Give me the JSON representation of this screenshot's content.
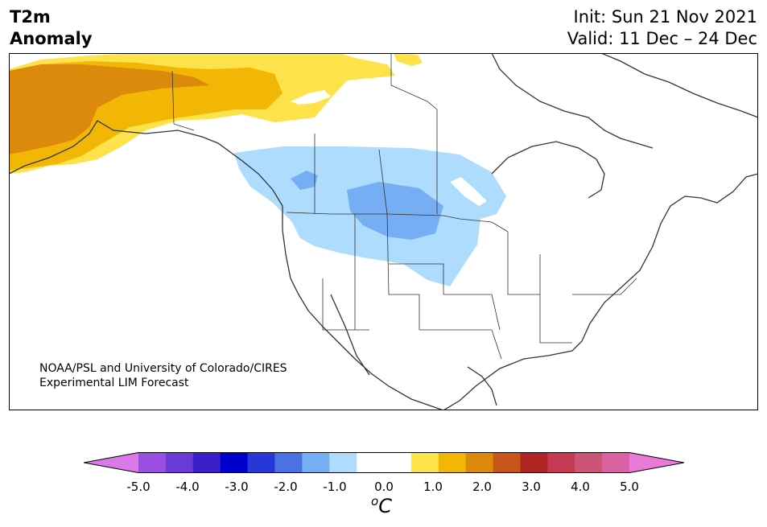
{
  "header": {
    "title_line1": "T2m",
    "title_line2": "Anomaly",
    "init_label": "Init: Sun 21 Nov 2021",
    "valid_label": "Valid: 11 Dec – 24 Dec"
  },
  "credit": {
    "line1": "NOAA/PSL and University of Colorado/CIRES",
    "line2": "Experimental LIM Forecast"
  },
  "colorbar": {
    "ticks": [
      "-5.0",
      "-4.0",
      "-3.0",
      "-2.0",
      "-1.0",
      "0.0",
      "1.0",
      "2.0",
      "3.0",
      "4.0",
      "5.0"
    ],
    "unit_base": "C",
    "unit_sup": "o",
    "colors": [
      "#d97ae8",
      "#9b4fe0",
      "#6a3ad8",
      "#3a20c8",
      "#0000cc",
      "#2638d8",
      "#4a72e4",
      "#75aef2",
      "#addcfc",
      "#ffffff",
      "#ffffff",
      "#fde24a",
      "#f2b705",
      "#dc8a0c",
      "#c8561a",
      "#b02424",
      "#c43a50",
      "#cc5476",
      "#da62a2",
      "#e97ad8"
    ]
  },
  "map": {
    "colors": {
      "warm_light": "#fde24a",
      "warm_mid": "#f2b705",
      "warm_dark": "#dc8a0c",
      "cool_light": "#addcfc",
      "cool_mid": "#75aef2",
      "border": "#333333"
    }
  }
}
